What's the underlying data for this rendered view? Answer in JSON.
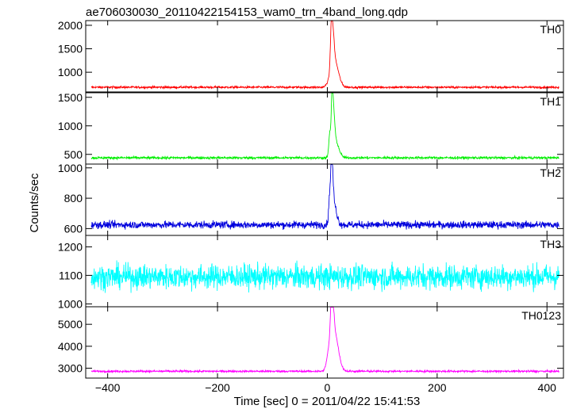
{
  "chart_data": {
    "type": "line",
    "title": "ae706030030_20110422154153_wam0_trn_4band_long.qdp",
    "xlabel": "Time [sec] 0 = 2011/04/22 15:41:53",
    "ylabel": "Counts/sec",
    "xlim": [
      -440,
      430
    ],
    "x_ticks": [
      -400,
      -200,
      0,
      200,
      400
    ],
    "x_tick_labels": [
      "−400",
      "−200",
      "0",
      "200",
      "400"
    ],
    "panels": [
      {
        "name": "TH0",
        "color": "#ff0000",
        "ylim": [
          580,
          2100
        ],
        "y_ticks": [
          1000,
          1500,
          2000
        ],
        "y_tick_labels": [
          "1000",
          "1500",
          "2000"
        ],
        "baseline": 680,
        "noise": 22,
        "x_start": -430,
        "x_end": 422,
        "peaks": [
          {
            "x": 4,
            "y": 850,
            "rise": 6,
            "decay": 6
          },
          {
            "x": 8,
            "y": 2100,
            "rise": 3,
            "decay": 4
          },
          {
            "x": 13,
            "y": 1250,
            "rise": 3,
            "decay": 10
          }
        ]
      },
      {
        "name": "TH1",
        "color": "#00ee00",
        "ylim": [
          330,
          1580
        ],
        "y_ticks": [
          500,
          1000,
          1500
        ],
        "y_tick_labels": [
          "500",
          "1000",
          "1500"
        ],
        "baseline": 440,
        "noise": 22,
        "x_start": -430,
        "x_end": 422,
        "peaks": [
          {
            "x": 5,
            "y": 900,
            "rise": 3,
            "decay": 4
          },
          {
            "x": 9,
            "y": 1560,
            "rise": 2,
            "decay": 4
          },
          {
            "x": 14,
            "y": 750,
            "rise": 3,
            "decay": 9
          }
        ]
      },
      {
        "name": "TH2",
        "color": "#0000dd",
        "ylim": [
          555,
          1025
        ],
        "y_ticks": [
          600,
          800,
          1000
        ],
        "y_tick_labels": [
          "600",
          "800",
          "1000"
        ],
        "baseline": 625,
        "noise": 24,
        "x_start": -430,
        "x_end": 422,
        "peaks": [
          {
            "x": 5,
            "y": 850,
            "rise": 3,
            "decay": 3
          },
          {
            "x": 8,
            "y": 1015,
            "rise": 2,
            "decay": 3
          },
          {
            "x": 12,
            "y": 760,
            "rise": 3,
            "decay": 7
          }
        ]
      },
      {
        "name": "TH3",
        "color": "#00ffff",
        "ylim": [
          990,
          1240
        ],
        "y_ticks": [
          1000,
          1100,
          1200
        ],
        "y_tick_labels": [
          "1000",
          "1100",
          "1200"
        ],
        "baseline": 1095,
        "noise": 42,
        "x_start": -430,
        "x_end": 422,
        "peaks": []
      },
      {
        "name": "TH0123",
        "color": "#ff00ff",
        "ylim": [
          2550,
          5800
        ],
        "y_ticks": [
          3000,
          4000,
          5000
        ],
        "y_tick_labels": [
          "3000",
          "4000",
          "5000"
        ],
        "baseline": 2860,
        "noise": 45,
        "x_start": -430,
        "x_end": 422,
        "peaks": [
          {
            "x": 4,
            "y": 4000,
            "rise": 6,
            "decay": 5
          },
          {
            "x": 8,
            "y": 5800,
            "rise": 3,
            "decay": 4
          },
          {
            "x": 13,
            "y": 4600,
            "rise": 3,
            "decay": 10
          }
        ]
      }
    ]
  }
}
